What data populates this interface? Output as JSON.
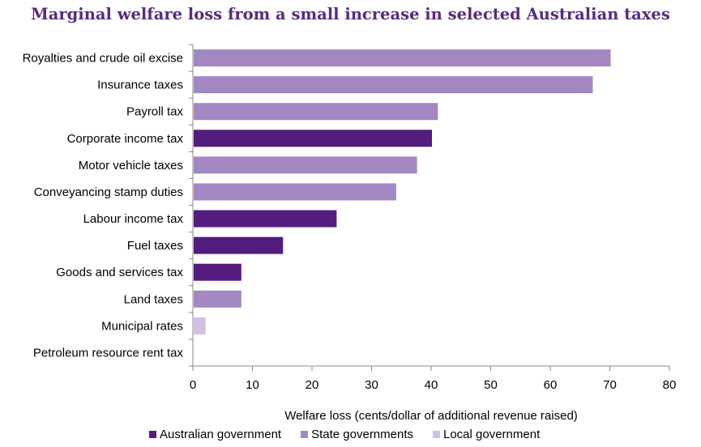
{
  "title": "Marginal welfare loss from a small increase in selected Australian taxes",
  "chart_data": {
    "type": "bar",
    "orientation": "horizontal",
    "title": "Marginal welfare loss from a small increase in selected Australian taxes",
    "xlabel": "Welfare loss (cents/dollar of additional revenue raised)",
    "ylabel": "",
    "xlim": [
      0,
      80
    ],
    "xticks": [
      "0",
      "10",
      "20",
      "30",
      "40",
      "50",
      "60",
      "70",
      "80"
    ],
    "grid": false,
    "legend_position": "bottom",
    "series_colors": {
      "Australian government": "#541c7e",
      "State governments": "#a387c2",
      "Local government": "#d2c0e2"
    },
    "legend": [
      "Australian government",
      "State governments",
      "Local government"
    ],
    "bars": [
      {
        "label": "Royalties and crude oil excise",
        "value": 70,
        "group": "State governments"
      },
      {
        "label": "Insurance taxes",
        "value": 67,
        "group": "State governments"
      },
      {
        "label": "Payroll tax",
        "value": 41,
        "group": "State governments"
      },
      {
        "label": "Corporate income tax",
        "value": 40,
        "group": "Australian government"
      },
      {
        "label": "Motor vehicle taxes",
        "value": 37.5,
        "group": "State governments"
      },
      {
        "label": "Conveyancing stamp duties",
        "value": 34,
        "group": "State governments"
      },
      {
        "label": "Labour income tax",
        "value": 24,
        "group": "Australian government"
      },
      {
        "label": "Fuel taxes",
        "value": 15,
        "group": "Australian government"
      },
      {
        "label": "Goods and services tax",
        "value": 8,
        "group": "Australian government"
      },
      {
        "label": "Land taxes",
        "value": 8,
        "group": "State governments"
      },
      {
        "label": "Municipal rates",
        "value": 2,
        "group": "Local government"
      },
      {
        "label": "Petroleum resource rent tax",
        "value": 0,
        "group": "Australian government"
      }
    ]
  }
}
